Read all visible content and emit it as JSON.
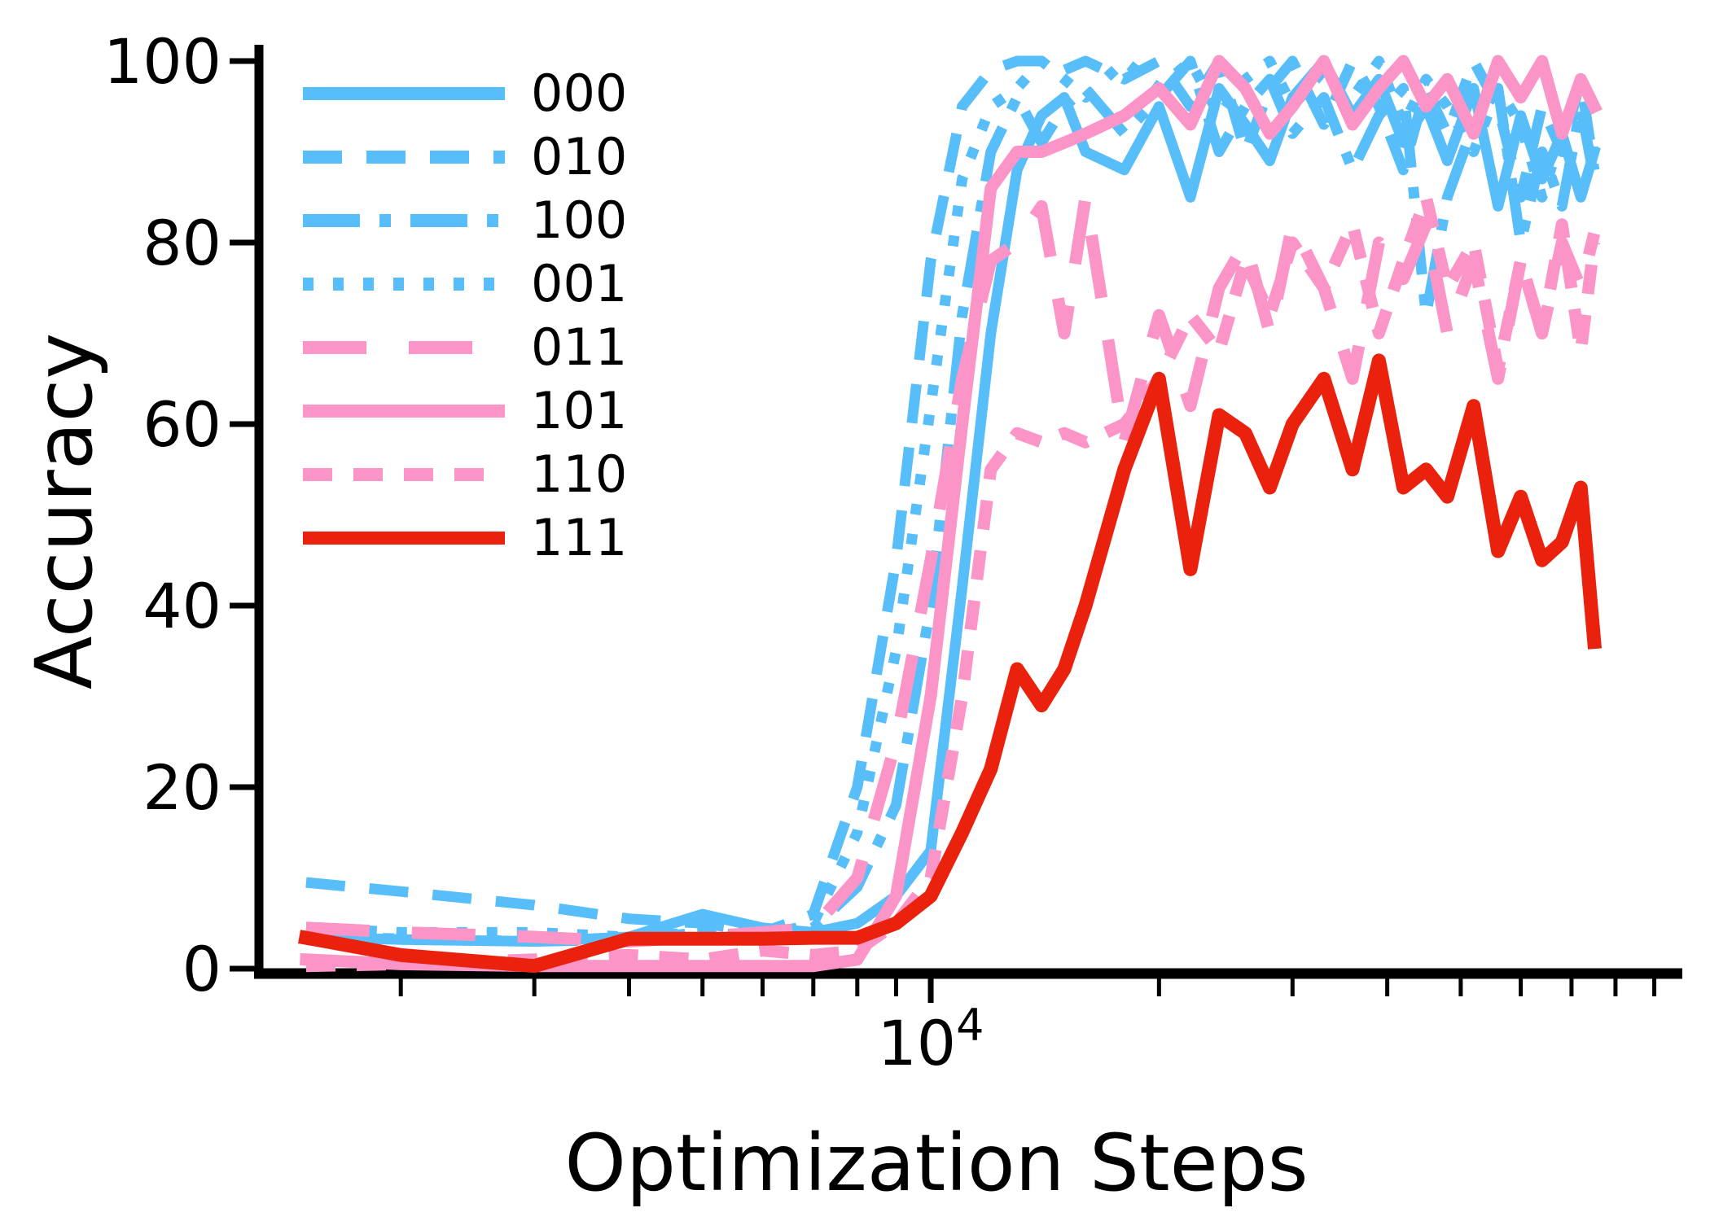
{
  "page": {
    "background": "#ffffff"
  },
  "chart_data": {
    "type": "line",
    "title": "",
    "xlabel": "Optimization Steps",
    "ylabel": "Accuracy",
    "x_scale": "log",
    "xlim": [
      1300,
      98000
    ],
    "ylim": [
      0,
      100
    ],
    "y_ticks": [
      0,
      20,
      40,
      60,
      80,
      100
    ],
    "x_major_tick": {
      "value": 10000,
      "base": "10",
      "exponent": "4"
    },
    "x_minor_ticks": [
      2000,
      3000,
      4000,
      5000,
      6000,
      7000,
      8000,
      9000,
      20000,
      30000,
      40000,
      50000,
      60000,
      70000,
      80000,
      90000
    ],
    "grid": false,
    "legend_position": "upper-left",
    "axis_color": "#000000",
    "x": [
      1500,
      2000,
      3000,
      4000,
      5000,
      6000,
      7000,
      8000,
      9000,
      10000,
      11000,
      12000,
      13000,
      14000,
      15000,
      16000,
      18000,
      20000,
      22000,
      24000,
      26000,
      28000,
      30000,
      33000,
      36000,
      39000,
      42000,
      45000,
      48000,
      52000,
      56000,
      60000,
      64000,
      68000,
      72000,
      75000
    ],
    "series": [
      {
        "name": "000",
        "color": "#58BEFA",
        "style": "solid",
        "width": 13,
        "values": [
          3.5,
          3.2,
          3.0,
          3.5,
          6.0,
          4.5,
          4.0,
          5.0,
          8.0,
          13,
          42,
          70,
          88,
          94,
          96,
          90,
          88,
          95,
          85,
          97,
          93,
          89,
          96,
          100,
          94,
          98,
          91,
          95,
          89,
          97,
          84,
          94,
          87,
          92,
          85,
          90
        ]
      },
      {
        "name": "010",
        "color": "#58BEFA",
        "style": "dashed",
        "width": 13,
        "values": [
          9.5,
          8.5,
          7.0,
          5.5,
          5.0,
          4.0,
          6.0,
          20,
          45,
          78,
          95,
          99,
          100,
          100,
          99,
          100,
          98,
          100,
          95,
          100,
          90,
          97,
          100,
          93,
          100,
          95,
          88,
          97,
          92,
          100,
          95,
          85,
          95,
          90,
          98,
          88
        ]
      },
      {
        "name": "100",
        "color": "#58BEFA",
        "style": "dashdot",
        "width": 13,
        "values": [
          3.5,
          3.3,
          3.0,
          3.2,
          4.0,
          3.5,
          4.5,
          9.0,
          18,
          40,
          72,
          90,
          96,
          91,
          95,
          97,
          92,
          96,
          100,
          90,
          95,
          98,
          92,
          96,
          88,
          94,
          97,
          72,
          85,
          93,
          97,
          80,
          90,
          84,
          95,
          87
        ]
      },
      {
        "name": "001",
        "color": "#58BEFA",
        "style": "dotted",
        "width": 13,
        "values": [
          4.5,
          4.0,
          4.0,
          3.5,
          4.0,
          3.5,
          5.0,
          15,
          35,
          62,
          87,
          95,
          97,
          100,
          98,
          96,
          100,
          97,
          100,
          94,
          98,
          100,
          95,
          99,
          96,
          100,
          93,
          98,
          95,
          90,
          97,
          93,
          85,
          92,
          95,
          90
        ]
      },
      {
        "name": "011",
        "color": "#FB95C7",
        "style": "longdash",
        "width": 15,
        "values": [
          4.5,
          4.0,
          3.5,
          3.0,
          3.5,
          4.0,
          4.5,
          10,
          25,
          45,
          65,
          78,
          80,
          84,
          70,
          85,
          58,
          72,
          62,
          75,
          80,
          70,
          82,
          75,
          65,
          80,
          76,
          82,
          70,
          78,
          65,
          78,
          70,
          80,
          75,
          81
        ]
      },
      {
        "name": "101",
        "color": "#FB95C7",
        "style": "solid",
        "width": 15,
        "values": [
          1.0,
          0.5,
          0.3,
          0.3,
          0.3,
          0.3,
          0.3,
          1.0,
          8,
          30,
          60,
          86,
          90,
          90,
          91,
          92,
          94,
          97,
          93,
          100,
          97,
          92,
          95,
          100,
          93,
          97,
          100,
          95,
          98,
          92,
          100,
          96,
          100,
          92,
          98,
          95
        ]
      },
      {
        "name": "110",
        "color": "#FB95C7",
        "style": "shortdash",
        "width": 15,
        "values": [
          0.3,
          0.5,
          1.0,
          1.5,
          1.0,
          2.0,
          1.5,
          2.0,
          5,
          10,
          30,
          55,
          59,
          58,
          59,
          58,
          60,
          65,
          72,
          68,
          78,
          72,
          80,
          75,
          82,
          70,
          78,
          85,
          75,
          80,
          66,
          78,
          70,
          82,
          68,
          80
        ]
      },
      {
        "name": "111",
        "color": "#E9210D",
        "style": "solid",
        "width": 17,
        "values": [
          3.4,
          1.5,
          0.3,
          3.3,
          3.3,
          3.3,
          3.4,
          3.4,
          5,
          8,
          15,
          22,
          33,
          29,
          33,
          40,
          55,
          65,
          44,
          61,
          59,
          53,
          60,
          65,
          55,
          67,
          53,
          55,
          52,
          62,
          46,
          52,
          45,
          47,
          53,
          36
        ]
      }
    ]
  }
}
